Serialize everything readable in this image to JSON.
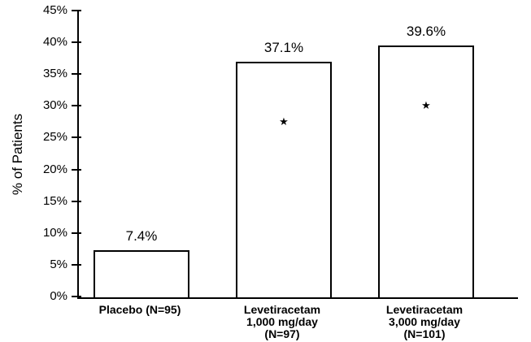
{
  "chart_data": {
    "type": "bar",
    "title": "",
    "ylabel": "% of Patients",
    "ylim": [
      0,
      45
    ],
    "ytick_step": 5,
    "yticks": [
      "0%",
      "5%",
      "10%",
      "15%",
      "20%",
      "25%",
      "30%",
      "35%",
      "40%",
      "45%"
    ],
    "categories": [
      "Placebo (N=95)",
      "Levetiracetam 1,000 mg/day (N=97)",
      "Levetiracetam 3,000 mg/day (N=101)"
    ],
    "category_lines": [
      [
        "Placebo (N=95)"
      ],
      [
        "Levetiracetam",
        "1,000 mg/day",
        "(N=97)"
      ],
      [
        "Levetiracetam",
        "3,000 mg/day",
        "(N=101)"
      ]
    ],
    "values": [
      7.4,
      37.1,
      39.6
    ],
    "value_labels": [
      "7.4%",
      "37.1%",
      "39.6%"
    ],
    "significant": [
      false,
      true,
      true
    ],
    "significance_marker": "★",
    "bar_fill": "#ffffff",
    "bar_border": "#000000",
    "axis_color": "#000000",
    "grid": false,
    "legend_position": "none"
  }
}
